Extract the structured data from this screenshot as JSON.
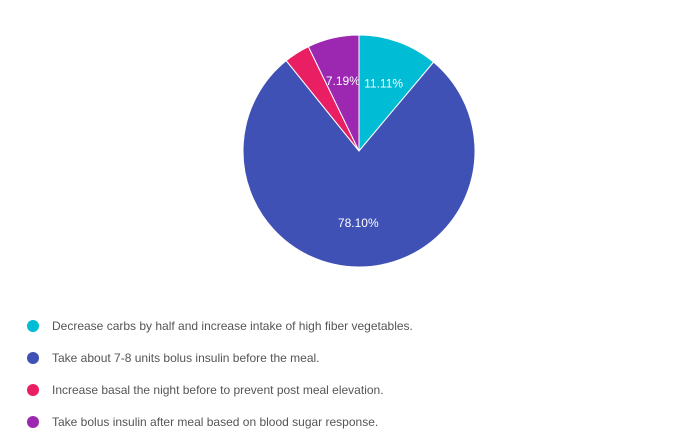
{
  "chart_data": {
    "type": "pie",
    "title": "",
    "slices": [
      {
        "label": "Decrease carbs by half and increase intake of high fiber vegetables.",
        "value": 11.11,
        "value_label": "11.11%",
        "color": "#00bcd4"
      },
      {
        "label": "Take about 7-8 units bolus insulin before the meal.",
        "value": 78.1,
        "value_label": "78.10%",
        "color": "#3f51b5"
      },
      {
        "label": "Increase basal the night before to prevent post meal elevation.",
        "value": 3.6,
        "value_label": "",
        "color": "#e91e63"
      },
      {
        "label": "Take bolus insulin after meal based on blood sugar response.",
        "value": 7.19,
        "value_label": "7.19%",
        "color": "#9c27b0"
      }
    ],
    "legend_position": "bottom-left",
    "start_angle": "12 o'clock, clockwise"
  }
}
